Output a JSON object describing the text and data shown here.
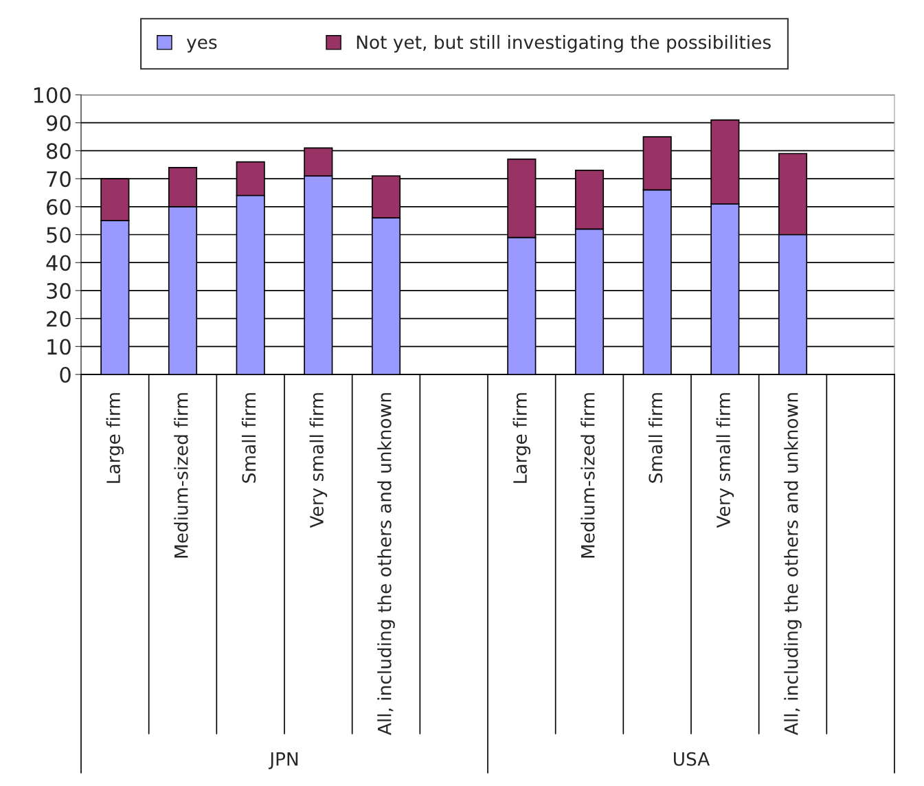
{
  "chart_data": {
    "type": "bar",
    "stacked": true,
    "categories": [
      "Large firm",
      "Medium-sized firm",
      "Small firm",
      "Very small firm",
      "All, including the others and unknown",
      null,
      "Large firm",
      "Medium-sized firm",
      "Small firm",
      "Very small firm",
      "All, including the others and unknown",
      null
    ],
    "series": [
      {
        "name": "yes",
        "color": "#9999ff",
        "values": [
          55,
          60,
          64,
          71,
          56,
          null,
          49,
          52,
          66,
          61,
          50,
          null
        ]
      },
      {
        "name": "Not yet, but still investigating the possibilities",
        "color": "#993366",
        "values": [
          15,
          14,
          12,
          10,
          15,
          null,
          28,
          21,
          19,
          30,
          29,
          null
        ]
      }
    ],
    "ylim": [
      0,
      100
    ],
    "yticks": [
      0,
      10,
      20,
      30,
      40,
      50,
      60,
      70,
      80,
      90,
      100
    ],
    "grid": "y",
    "legend": "top",
    "annotations": [
      "JPN",
      "USA"
    ]
  }
}
